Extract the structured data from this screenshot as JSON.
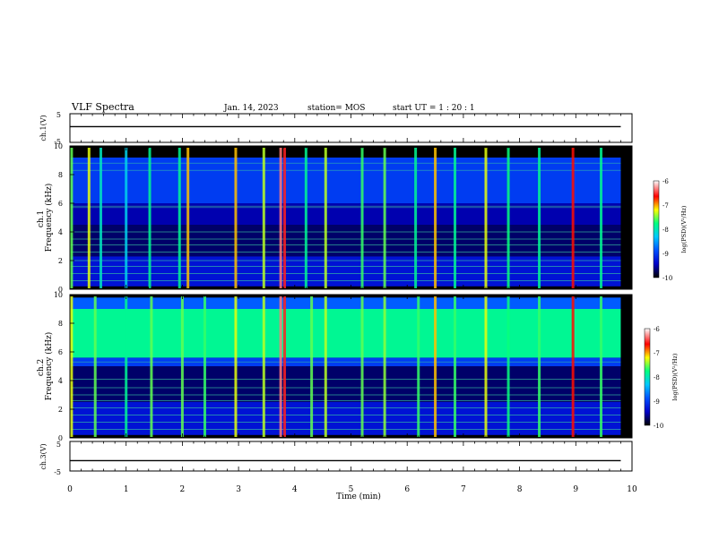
{
  "header": {
    "title": "VLF Spectra",
    "date": "Jan. 14, 2023",
    "station": "station= MOS",
    "start": "start UT = 1 : 20 : 1"
  },
  "colorbar": {
    "label": "log(PSD)(V²/Hz)",
    "ticks": [
      "-6",
      "-7",
      "-8",
      "-9",
      "-10"
    ]
  },
  "chart_data": [
    {
      "type": "line",
      "id": "ch1-waveform",
      "ylabel": "ch.1(V)",
      "ylim": [
        -5,
        5
      ],
      "ytick_labels": [
        "5",
        "-5"
      ],
      "xlim": [
        0,
        10
      ],
      "series": [
        {
          "x": [
            0,
            9.8
          ],
          "y": [
            0.5,
            0.5
          ]
        }
      ]
    },
    {
      "type": "heatmap",
      "id": "ch1-spectrogram",
      "ylabel": "ch.1\nFrequency (kHz)",
      "ylim": [
        0,
        10
      ],
      "yticks": [
        0,
        2,
        4,
        6,
        8,
        10
      ],
      "xlim": [
        0,
        10
      ],
      "data_until_min": 9.8,
      "color_scale": {
        "min": -10,
        "max": -6,
        "colors": [
          "#000000",
          "#0000c8",
          "#0050ff",
          "#00c8ff",
          "#00ff80",
          "#ffff00",
          "#ff0000",
          "#ffffff"
        ]
      },
      "bands": [
        {
          "from_khz": 0.2,
          "to_khz": 2.3,
          "level": -9.3
        },
        {
          "from_khz": 2.3,
          "to_khz": 4.5,
          "level": -9.7
        },
        {
          "from_khz": 4.5,
          "to_khz": 6.0,
          "level": -9.5
        },
        {
          "from_khz": 6.0,
          "to_khz": 9.2,
          "level": -9.0
        },
        {
          "from_khz": 9.2,
          "to_khz": 10.0,
          "level": -10.0
        }
      ],
      "tones_khz": [
        0.6,
        1.1,
        1.6,
        2.0,
        2.6,
        3.1,
        3.5,
        4.0,
        5.7,
        5.8,
        8.3,
        8.8
      ],
      "bursts": [
        {
          "t_min": 0.03,
          "level": -7.5
        },
        {
          "t_min": 0.34,
          "level": -7.2
        },
        {
          "t_min": 0.55,
          "level": -8.0
        },
        {
          "t_min": 1.0,
          "level": -8.2
        },
        {
          "t_min": 1.42,
          "level": -7.8
        },
        {
          "t_min": 1.95,
          "level": -7.8
        },
        {
          "t_min": 2.1,
          "level": -7.0
        },
        {
          "t_min": 2.95,
          "level": -7.0
        },
        {
          "t_min": 3.45,
          "level": -7.3
        },
        {
          "t_min": 3.75,
          "level": -6.3
        },
        {
          "t_min": 3.82,
          "level": -6.5
        },
        {
          "t_min": 4.2,
          "level": -7.8
        },
        {
          "t_min": 4.55,
          "level": -7.3
        },
        {
          "t_min": 5.2,
          "level": -7.6
        },
        {
          "t_min": 5.6,
          "level": -7.5
        },
        {
          "t_min": 6.15,
          "level": -7.8
        },
        {
          "t_min": 6.5,
          "level": -7.0
        },
        {
          "t_min": 6.85,
          "level": -7.8
        },
        {
          "t_min": 7.4,
          "level": -7.2
        },
        {
          "t_min": 7.8,
          "level": -7.7
        },
        {
          "t_min": 8.35,
          "level": -7.8
        },
        {
          "t_min": 8.95,
          "level": -6.6
        },
        {
          "t_min": 9.45,
          "level": -7.8
        }
      ]
    },
    {
      "type": "heatmap",
      "id": "ch2-spectrogram",
      "ylabel": "ch.2\nFrequency (kHz)",
      "ylim": [
        0,
        10
      ],
      "yticks": [
        0,
        2,
        4,
        6,
        8,
        10
      ],
      "xlim": [
        0,
        10
      ],
      "data_until_min": 9.8,
      "color_scale": {
        "min": -10,
        "max": -6,
        "colors": [
          "#000000",
          "#0000c8",
          "#0050ff",
          "#00c8ff",
          "#00ff80",
          "#ffff00",
          "#ff0000",
          "#ffffff"
        ]
      },
      "bands": [
        {
          "from_khz": 0.2,
          "to_khz": 2.5,
          "level": -9.3
        },
        {
          "from_khz": 2.5,
          "to_khz": 5.0,
          "level": -9.7
        },
        {
          "from_khz": 5.0,
          "to_khz": 5.6,
          "level": -9.0
        },
        {
          "from_khz": 5.6,
          "to_khz": 9.0,
          "level": -7.8
        },
        {
          "from_khz": 9.0,
          "to_khz": 9.8,
          "level": -8.8
        },
        {
          "from_khz": 9.8,
          "to_khz": 10.0,
          "level": -10.0
        }
      ],
      "tones_khz": [
        0.6,
        1.1,
        1.6,
        2.1,
        2.6,
        3.0,
        3.5,
        4.1,
        5.3
      ],
      "bursts": [
        {
          "t_min": 0.03,
          "level": -7.2
        },
        {
          "t_min": 0.45,
          "level": -7.5
        },
        {
          "t_min": 1.0,
          "level": -7.8
        },
        {
          "t_min": 1.45,
          "level": -7.5
        },
        {
          "t_min": 2.0,
          "level": -7.5
        },
        {
          "t_min": 2.4,
          "level": -7.6
        },
        {
          "t_min": 2.95,
          "level": -7.2
        },
        {
          "t_min": 3.45,
          "level": -7.3
        },
        {
          "t_min": 3.75,
          "level": -6.3
        },
        {
          "t_min": 3.82,
          "level": -6.5
        },
        {
          "t_min": 4.3,
          "level": -7.5
        },
        {
          "t_min": 4.55,
          "level": -7.3
        },
        {
          "t_min": 5.2,
          "level": -7.5
        },
        {
          "t_min": 5.6,
          "level": -7.4
        },
        {
          "t_min": 6.2,
          "level": -7.6
        },
        {
          "t_min": 6.5,
          "level": -7.0
        },
        {
          "t_min": 6.85,
          "level": -7.6
        },
        {
          "t_min": 7.4,
          "level": -7.2
        },
        {
          "t_min": 7.8,
          "level": -7.7
        },
        {
          "t_min": 8.35,
          "level": -7.6
        },
        {
          "t_min": 8.95,
          "level": -6.6
        },
        {
          "t_min": 9.45,
          "level": -7.6
        }
      ]
    },
    {
      "type": "line",
      "id": "ch3-waveform",
      "ylabel": "ch.3(V)",
      "ylim": [
        -5,
        5
      ],
      "ytick_labels": [
        "5",
        "-5"
      ],
      "xlim": [
        0,
        10
      ],
      "xticks": [
        0,
        1,
        2,
        3,
        4,
        5,
        6,
        7,
        8,
        9,
        10
      ],
      "xlabel": "Time (min)",
      "series": [
        {
          "x": [
            0,
            9.8
          ],
          "y": [
            -1.5,
            -1.5
          ]
        }
      ]
    }
  ]
}
